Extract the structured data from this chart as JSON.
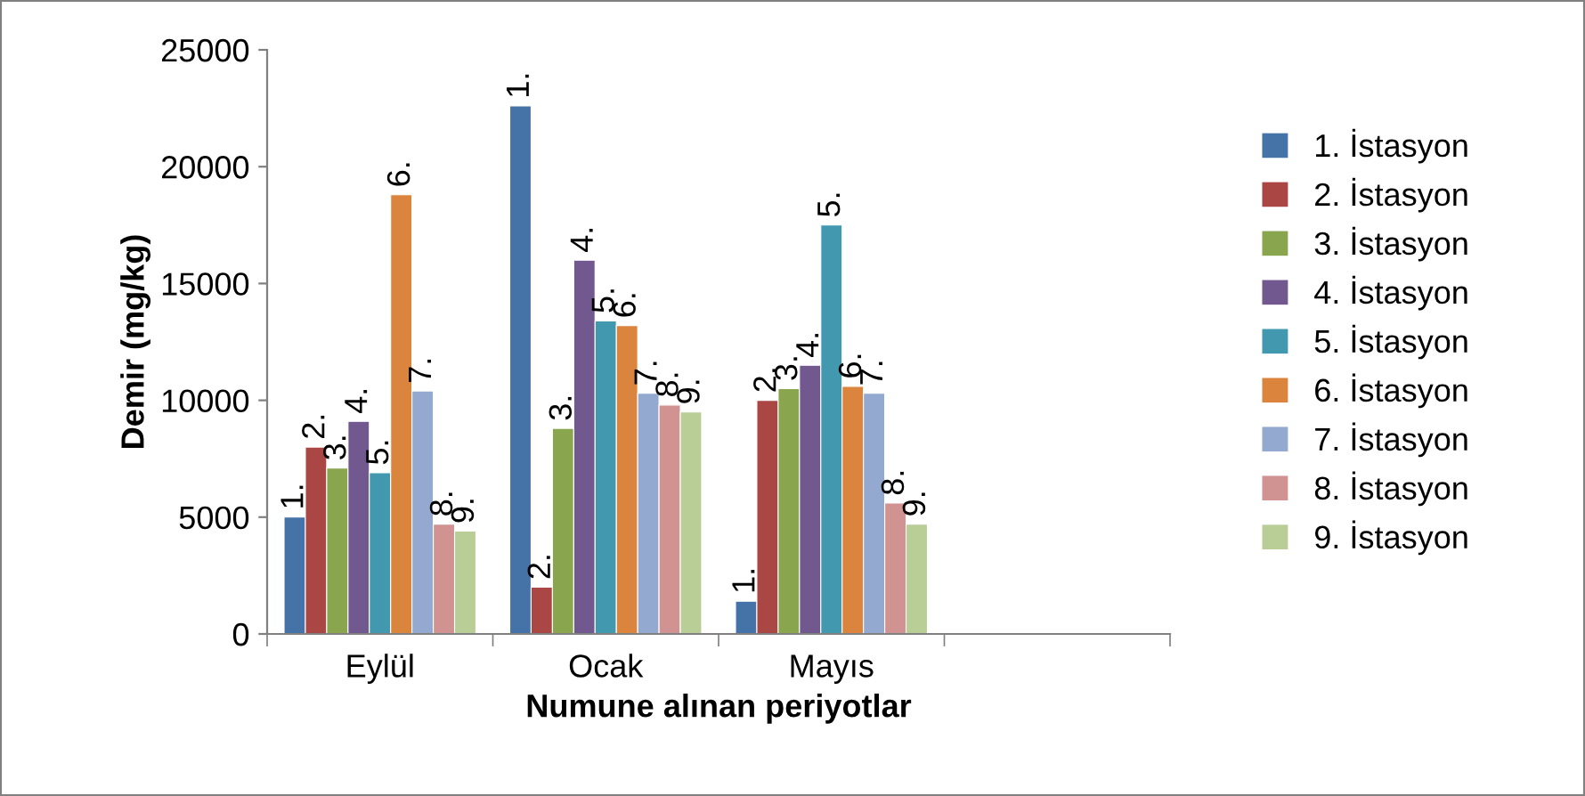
{
  "chart_data": {
    "type": "bar",
    "xlabel": "Numune alınan periyotlar",
    "ylabel": "Demir (mg/kg)",
    "categories": [
      "Eylül",
      "Ocak",
      "Mayıs",
      null
    ],
    "ylim": [
      0,
      25000
    ],
    "yticks": [
      0,
      5000,
      10000,
      15000,
      20000,
      25000
    ],
    "grid": false,
    "legend": "right",
    "series": [
      {
        "name": "1. İstasyon",
        "color": "#4572a7",
        "values": [
          5000,
          22600,
          1400,
          null
        ]
      },
      {
        "name": "2. İstasyon",
        "color": "#aa4643",
        "values": [
          8000,
          2000,
          10000,
          null
        ]
      },
      {
        "name": "3. İstasyon",
        "color": "#89a54e",
        "values": [
          7100,
          8800,
          10500,
          null
        ]
      },
      {
        "name": "4. İstasyon",
        "color": "#71588f",
        "values": [
          9100,
          16000,
          11500,
          null
        ]
      },
      {
        "name": "5. İstasyon",
        "color": "#4198af",
        "values": [
          6900,
          13400,
          17500,
          null
        ]
      },
      {
        "name": "6. İstasyon",
        "color": "#db843d",
        "values": [
          18800,
          13200,
          10600,
          null
        ]
      },
      {
        "name": "7. İstasyon",
        "color": "#93a9cf",
        "values": [
          10400,
          10300,
          10300,
          null
        ]
      },
      {
        "name": "8. İstasyon",
        "color": "#d19392",
        "values": [
          4700,
          9800,
          5600,
          null
        ]
      },
      {
        "name": "9. İstasyon",
        "color": "#b9cd96",
        "values": [
          4400,
          9500,
          4700,
          null
        ]
      }
    ],
    "annotations": [
      "1.",
      "2.",
      "3.",
      "4.",
      "5.",
      "6.",
      "7.",
      "8.",
      "9.",
      "1.",
      "2.",
      "3.",
      "4.",
      "5.",
      "6.",
      "7.",
      "8.",
      "9.",
      "1.",
      "2.",
      "3.",
      "4.",
      "5.",
      "6.",
      "7.",
      "8.",
      "9."
    ]
  }
}
